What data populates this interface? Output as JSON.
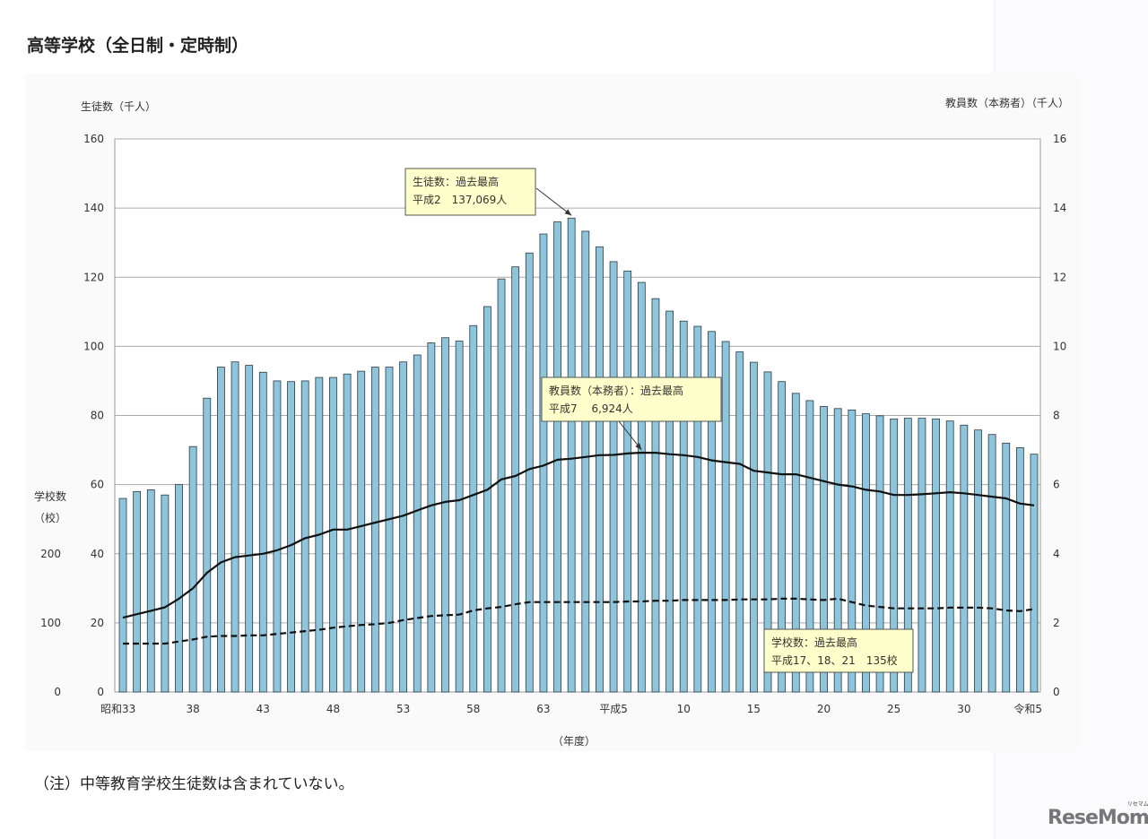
{
  "page": {
    "title": "高等学校（全日制・定時制）",
    "note": "（注）中等教育学校生徒数は含まれていない。",
    "logo": "ReseMom",
    "logo_ruby": "リセマム"
  },
  "chart_data": {
    "type": "bar+line",
    "title": "",
    "xlabel": "（年度）",
    "ylabel_left": "生徒数（千人）",
    "ylabel_right": "教員数（本務者）（千人）",
    "ylabel_schools": [
      "学校数",
      "（校）"
    ],
    "ylim_left": [
      0,
      160
    ],
    "yticks_left": [
      0,
      20,
      40,
      60,
      80,
      100,
      120,
      140,
      160
    ],
    "ylim_right": [
      0,
      16
    ],
    "yticks_right": [
      0,
      2,
      4,
      6,
      8,
      10,
      12,
      14,
      16
    ],
    "yticks_schools": [
      0,
      100,
      200
    ],
    "grid": true,
    "colors": {
      "bars": "#8ec5db",
      "bar_outline": "#2b3a44",
      "lines": "#111111",
      "annotation_bg": "#ffffcc"
    },
    "x_tick_labels": [
      {
        "year": "昭和33",
        "label": "昭和33"
      },
      {
        "year": "昭和38",
        "label": "38"
      },
      {
        "year": "昭和43",
        "label": "43"
      },
      {
        "year": "昭和48",
        "label": "48"
      },
      {
        "year": "昭和53",
        "label": "53"
      },
      {
        "year": "昭和58",
        "label": "58"
      },
      {
        "year": "昭和63",
        "label": "63"
      },
      {
        "year": "平成5",
        "label": "平成5"
      },
      {
        "year": "平成10",
        "label": "10"
      },
      {
        "year": "平成15",
        "label": "15"
      },
      {
        "year": "平成20",
        "label": "20"
      },
      {
        "year": "平成25",
        "label": "25"
      },
      {
        "year": "平成30",
        "label": "30"
      },
      {
        "year": "令和5",
        "label": "令和5"
      }
    ],
    "years": [
      "昭和33",
      "昭和34",
      "昭和35",
      "昭和36",
      "昭和37",
      "昭和38",
      "昭和39",
      "昭和40",
      "昭和41",
      "昭和42",
      "昭和43",
      "昭和44",
      "昭和45",
      "昭和46",
      "昭和47",
      "昭和48",
      "昭和49",
      "昭和50",
      "昭和51",
      "昭和52",
      "昭和53",
      "昭和54",
      "昭和55",
      "昭和56",
      "昭和57",
      "昭和58",
      "昭和59",
      "昭和60",
      "昭和61",
      "昭和62",
      "昭和63",
      "平成1",
      "平成2",
      "平成3",
      "平成4",
      "平成5",
      "平成6",
      "平成7",
      "平成8",
      "平成9",
      "平成10",
      "平成11",
      "平成12",
      "平成13",
      "平成14",
      "平成15",
      "平成16",
      "平成17",
      "平成18",
      "平成19",
      "平成20",
      "平成21",
      "平成22",
      "平成23",
      "平成24",
      "平成25",
      "平成26",
      "平成27",
      "平成28",
      "平成29",
      "平成30",
      "令和1",
      "令和2",
      "令和3",
      "令和4",
      "令和5"
    ],
    "series": [
      {
        "key": "students",
        "axis": "left",
        "type": "bar",
        "unit": "千人",
        "values": [
          56,
          58,
          58.5,
          57,
          60,
          71,
          85,
          94,
          95.5,
          94.5,
          92.5,
          90,
          89.8,
          90,
          91,
          91,
          92,
          92.8,
          94,
          94,
          95.5,
          97.5,
          101,
          102.5,
          101.5,
          106,
          111.5,
          119.5,
          123,
          127,
          132.5,
          136,
          137.1,
          133.3,
          128.8,
          124.5,
          121.8,
          118.5,
          113.8,
          110.2,
          107.3,
          105.8,
          104.3,
          101.4,
          98.4,
          95.4,
          92.6,
          89.8,
          86.4,
          84.3,
          82.6,
          82,
          81.6,
          80.5,
          79.9,
          79,
          79.2,
          79.2,
          79,
          78.4,
          77.2,
          75.8,
          74.5,
          72,
          70.7,
          68.8
        ]
      },
      {
        "key": "teachers",
        "axis": "right",
        "type": "line",
        "style": "solid",
        "unit": "千人",
        "values": [
          2.15,
          2.25,
          2.35,
          2.45,
          2.7,
          3.0,
          3.45,
          3.75,
          3.9,
          3.95,
          4.0,
          4.1,
          4.25,
          4.45,
          4.55,
          4.7,
          4.7,
          4.8,
          4.9,
          5.0,
          5.1,
          5.25,
          5.4,
          5.5,
          5.55,
          5.7,
          5.85,
          6.15,
          6.25,
          6.45,
          6.55,
          6.72,
          6.75,
          6.8,
          6.85,
          6.86,
          6.9,
          6.924,
          6.92,
          6.88,
          6.85,
          6.8,
          6.7,
          6.65,
          6.6,
          6.4,
          6.35,
          6.3,
          6.3,
          6.2,
          6.1,
          6.0,
          5.95,
          5.85,
          5.8,
          5.7,
          5.7,
          5.72,
          5.75,
          5.78,
          5.75,
          5.7,
          5.65,
          5.6,
          5.45,
          5.4
        ]
      },
      {
        "key": "schools",
        "axis": "schools",
        "type": "line",
        "style": "dashed",
        "unit": "校",
        "values": [
          70,
          70,
          70,
          70,
          73,
          76,
          80,
          81,
          81,
          82,
          82,
          84,
          86,
          88,
          90,
          93,
          95,
          97,
          98,
          100,
          104,
          107,
          110,
          111,
          112,
          118,
          121,
          123,
          127,
          130,
          130,
          130,
          130,
          130,
          130,
          130,
          131,
          131,
          132,
          132,
          133,
          133,
          133,
          133,
          134,
          134,
          134,
          135,
          135,
          134,
          133,
          135,
          130,
          125,
          123,
          121,
          121,
          121,
          121,
          122,
          122,
          122,
          121,
          118,
          117,
          120
        ]
      }
    ],
    "annotations": [
      {
        "target": "students",
        "year": "平成2",
        "lines": [
          "生徒数：過去最高",
          "平成2　137,069人"
        ]
      },
      {
        "target": "teachers",
        "year": "平成7",
        "lines": [
          "教員数（本務者）：過去最高",
          "平成7　 6,924人"
        ]
      },
      {
        "target": "schools",
        "year": "平成17",
        "lines": [
          "学校数：過去最高",
          "平成17、18、21　135校"
        ]
      }
    ]
  }
}
